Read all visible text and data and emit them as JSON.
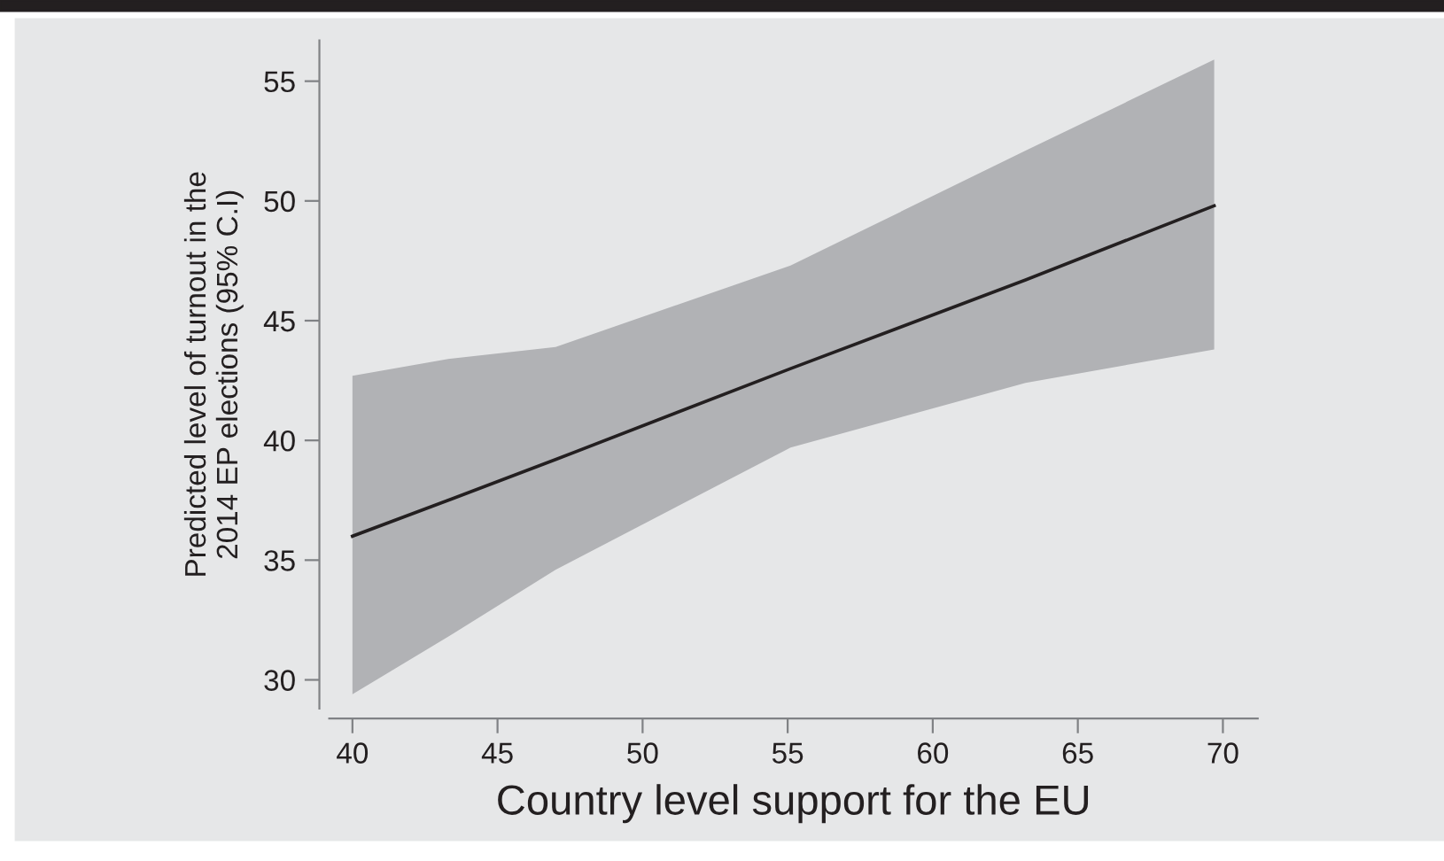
{
  "chart_data": {
    "type": "line",
    "xlabel": "Country level support for the EU",
    "ylabel": "Predicted level of turnout in the\n2014 EP elections (95% C.I)",
    "xlim": [
      39.2,
      71.2
    ],
    "ylim": [
      28.8,
      56.7
    ],
    "xticks": [
      40,
      45,
      50,
      55,
      60,
      65,
      70
    ],
    "yticks": [
      30,
      35,
      40,
      45,
      50,
      55
    ],
    "grid": false,
    "series": [
      {
        "color": "#231f20",
        "x": [
          40,
          43.3,
          47,
          55.1,
          63.2,
          69.7
        ],
        "values": [
          36.0,
          37.5,
          39.2,
          43.0,
          46.7,
          49.8
        ],
        "lower": [
          29.4,
          31.8,
          34.6,
          39.7,
          42.4,
          43.8
        ],
        "upper": [
          42.7,
          43.4,
          43.9,
          47.3,
          52.1,
          55.9
        ]
      }
    ]
  }
}
